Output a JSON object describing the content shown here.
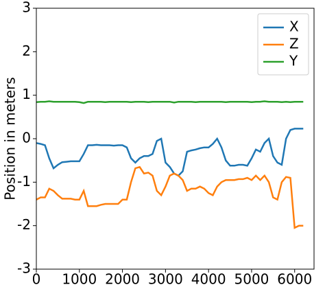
{
  "chart_data": {
    "type": "line",
    "y_label": "Position in meters",
    "x": [
      0,
      100,
      200,
      300,
      400,
      500,
      600,
      700,
      800,
      900,
      1000,
      1100,
      1200,
      1300,
      1400,
      1500,
      1600,
      1700,
      1800,
      1900,
      2000,
      2100,
      2200,
      2300,
      2400,
      2500,
      2600,
      2700,
      2800,
      2900,
      3000,
      3100,
      3200,
      3300,
      3400,
      3500,
      3600,
      3700,
      3800,
      3900,
      4000,
      4100,
      4200,
      4300,
      4400,
      4500,
      4600,
      4700,
      4800,
      4900,
      5000,
      5100,
      5200,
      5300,
      5400,
      5500,
      5600,
      5700,
      5800,
      5900,
      6000,
      6100,
      6200
    ],
    "series": [
      {
        "name": "X",
        "color": "#1f77b4",
        "values": [
          -0.1,
          -0.12,
          -0.15,
          -0.45,
          -0.68,
          -0.6,
          -0.54,
          -0.53,
          -0.52,
          -0.52,
          -0.52,
          -0.35,
          -0.15,
          -0.15,
          -0.14,
          -0.15,
          -0.15,
          -0.15,
          -0.16,
          -0.15,
          -0.15,
          -0.2,
          -0.45,
          -0.55,
          -0.45,
          -0.4,
          -0.4,
          -0.35,
          -0.05,
          0.0,
          -0.55,
          -0.65,
          -0.8,
          -0.85,
          -0.75,
          -0.3,
          -0.27,
          -0.25,
          -0.22,
          -0.2,
          -0.2,
          -0.12,
          0.0,
          -0.2,
          -0.5,
          -0.62,
          -0.62,
          -0.6,
          -0.6,
          -0.62,
          -0.45,
          -0.25,
          -0.3,
          -0.1,
          0.0,
          -0.4,
          -0.55,
          -0.6,
          0.0,
          0.2,
          0.23,
          0.23,
          0.23
        ]
      },
      {
        "name": "Z",
        "color": "#ff7f0e",
        "values": [
          -1.4,
          -1.35,
          -1.35,
          -1.15,
          -1.2,
          -1.3,
          -1.38,
          -1.38,
          -1.38,
          -1.4,
          -1.4,
          -1.2,
          -1.55,
          -1.55,
          -1.55,
          -1.52,
          -1.5,
          -1.5,
          -1.5,
          -1.5,
          -1.4,
          -1.4,
          -1.0,
          -0.68,
          -0.65,
          -0.8,
          -0.78,
          -0.85,
          -1.2,
          -1.3,
          -1.1,
          -0.85,
          -0.8,
          -0.85,
          -0.95,
          -1.2,
          -1.15,
          -1.15,
          -1.1,
          -1.15,
          -1.25,
          -1.3,
          -1.1,
          -1.0,
          -0.95,
          -0.95,
          -0.95,
          -0.93,
          -0.93,
          -0.9,
          -0.95,
          -0.85,
          -0.95,
          -0.85,
          -1.0,
          -1.35,
          -1.4,
          -1.0,
          -0.88,
          -0.9,
          -2.05,
          -2.0,
          -2.0
        ]
      },
      {
        "name": "Y",
        "color": "#2ca02c",
        "values": [
          0.84,
          0.85,
          0.85,
          0.86,
          0.85,
          0.85,
          0.85,
          0.85,
          0.85,
          0.85,
          0.84,
          0.82,
          0.85,
          0.85,
          0.85,
          0.85,
          0.84,
          0.85,
          0.85,
          0.85,
          0.85,
          0.85,
          0.84,
          0.85,
          0.85,
          0.85,
          0.84,
          0.85,
          0.85,
          0.85,
          0.85,
          0.85,
          0.83,
          0.85,
          0.85,
          0.85,
          0.85,
          0.84,
          0.85,
          0.85,
          0.85,
          0.85,
          0.85,
          0.85,
          0.84,
          0.85,
          0.85,
          0.85,
          0.85,
          0.85,
          0.84,
          0.85,
          0.85,
          0.86,
          0.85,
          0.85,
          0.85,
          0.84,
          0.85,
          0.84,
          0.85,
          0.85,
          0.85
        ]
      }
    ],
    "xlim": [
      0,
      6450
    ],
    "ylim": [
      -3,
      3
    ],
    "xticks": [
      0,
      1000,
      2000,
      3000,
      4000,
      5000,
      6000
    ],
    "yticks": [
      -3,
      -2,
      -1,
      0,
      1,
      2,
      3
    ],
    "legend": "upper right"
  }
}
